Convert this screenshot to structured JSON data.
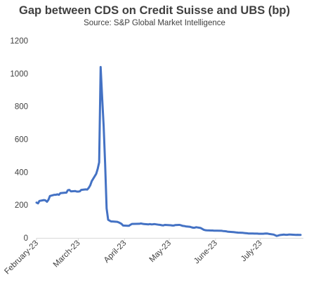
{
  "chart_data": {
    "type": "line",
    "title": "Gap between CDS on Credit Suisse and UBS (bp)",
    "subtitle": "Source: S&P Global Market Intelligence",
    "xlabel": "",
    "ylabel": "",
    "ylim": [
      0,
      1200
    ],
    "yticks": [
      0,
      200,
      400,
      600,
      800,
      1000,
      1200
    ],
    "xlim": [
      "2023-02-01",
      "2023-07-28"
    ],
    "xticks": [
      {
        "date": "2023-02-01",
        "label": "February-23"
      },
      {
        "date": "2023-03-01",
        "label": "March-23"
      },
      {
        "date": "2023-04-01",
        "label": "April-23"
      },
      {
        "date": "2023-05-01",
        "label": "May-23"
      },
      {
        "date": "2023-06-01",
        "label": "June-23"
      },
      {
        "date": "2023-07-01",
        "label": "July-23"
      }
    ],
    "grid": false,
    "legend": "none",
    "colors": {
      "line": "#4472c4",
      "text": "#404040",
      "axis": "#d9d9d9"
    },
    "series": [
      {
        "points": [
          [
            "2023-02-01",
            215
          ],
          [
            "2023-02-02",
            210
          ],
          [
            "2023-02-03",
            225
          ],
          [
            "2023-02-06",
            230
          ],
          [
            "2023-02-07",
            228
          ],
          [
            "2023-02-08",
            220
          ],
          [
            "2023-02-09",
            232
          ],
          [
            "2023-02-10",
            255
          ],
          [
            "2023-02-13",
            262
          ],
          [
            "2023-02-14",
            262
          ],
          [
            "2023-02-15",
            265
          ],
          [
            "2023-02-16",
            262
          ],
          [
            "2023-02-17",
            272
          ],
          [
            "2023-02-20",
            275
          ],
          [
            "2023-02-21",
            275
          ],
          [
            "2023-02-22",
            290
          ],
          [
            "2023-02-23",
            292
          ],
          [
            "2023-02-24",
            283
          ],
          [
            "2023-02-27",
            285
          ],
          [
            "2023-02-28",
            282
          ],
          [
            "2023-03-01",
            282
          ],
          [
            "2023-03-02",
            283
          ],
          [
            "2023-03-03",
            292
          ],
          [
            "2023-03-06",
            295
          ],
          [
            "2023-03-07",
            294
          ],
          [
            "2023-03-08",
            305
          ],
          [
            "2023-03-09",
            320
          ],
          [
            "2023-03-10",
            345
          ],
          [
            "2023-03-13",
            390
          ],
          [
            "2023-03-14",
            420
          ],
          [
            "2023-03-15",
            460
          ],
          [
            "2023-03-16",
            1040
          ],
          [
            "2023-03-17",
            850
          ],
          [
            "2023-03-18",
            680
          ],
          [
            "2023-03-19",
            450
          ],
          [
            "2023-03-20",
            180
          ],
          [
            "2023-03-21",
            110
          ],
          [
            "2023-03-22",
            105
          ],
          [
            "2023-03-23",
            100
          ],
          [
            "2023-03-24",
            100
          ],
          [
            "2023-03-27",
            98
          ],
          [
            "2023-03-28",
            95
          ],
          [
            "2023-03-29",
            90
          ],
          [
            "2023-03-30",
            85
          ],
          [
            "2023-03-31",
            75
          ],
          [
            "2023-04-03",
            74
          ],
          [
            "2023-04-04",
            74
          ],
          [
            "2023-04-05",
            80
          ],
          [
            "2023-04-06",
            85
          ],
          [
            "2023-04-11",
            86
          ],
          [
            "2023-04-12",
            88
          ],
          [
            "2023-04-13",
            86
          ],
          [
            "2023-04-14",
            84
          ],
          [
            "2023-04-17",
            82
          ],
          [
            "2023-04-18",
            84
          ],
          [
            "2023-04-19",
            82
          ],
          [
            "2023-04-20",
            83
          ],
          [
            "2023-04-21",
            84
          ],
          [
            "2023-04-24",
            80
          ],
          [
            "2023-04-25",
            79
          ],
          [
            "2023-04-26",
            77
          ],
          [
            "2023-04-27",
            76
          ],
          [
            "2023-04-28",
            79
          ],
          [
            "2023-05-02",
            77
          ],
          [
            "2023-05-03",
            75
          ],
          [
            "2023-05-04",
            75
          ],
          [
            "2023-05-05",
            78
          ],
          [
            "2023-05-08",
            79
          ],
          [
            "2023-05-09",
            76
          ],
          [
            "2023-05-10",
            73
          ],
          [
            "2023-05-11",
            72
          ],
          [
            "2023-05-12",
            70
          ],
          [
            "2023-05-15",
            67
          ],
          [
            "2023-05-16",
            64
          ],
          [
            "2023-05-17",
            62
          ],
          [
            "2023-05-18",
            62
          ],
          [
            "2023-05-19",
            65
          ],
          [
            "2023-05-22",
            60
          ],
          [
            "2023-05-23",
            55
          ],
          [
            "2023-05-24",
            50
          ],
          [
            "2023-05-25",
            47
          ],
          [
            "2023-05-26",
            46
          ],
          [
            "2023-05-29",
            45
          ],
          [
            "2023-05-30",
            45
          ],
          [
            "2023-05-31",
            44
          ],
          [
            "2023-06-01",
            44
          ],
          [
            "2023-06-02",
            44
          ],
          [
            "2023-06-05",
            43
          ],
          [
            "2023-06-06",
            42
          ],
          [
            "2023-06-07",
            41
          ],
          [
            "2023-06-08",
            40
          ],
          [
            "2023-06-09",
            38
          ],
          [
            "2023-06-12",
            36
          ],
          [
            "2023-06-13",
            35
          ],
          [
            "2023-06-14",
            34
          ],
          [
            "2023-06-15",
            33
          ],
          [
            "2023-06-16",
            32
          ],
          [
            "2023-06-19",
            31
          ],
          [
            "2023-06-20",
            30
          ],
          [
            "2023-06-21",
            29
          ],
          [
            "2023-06-22",
            28
          ],
          [
            "2023-06-23",
            27
          ],
          [
            "2023-06-26",
            27
          ],
          [
            "2023-06-27",
            26
          ],
          [
            "2023-06-28",
            26
          ],
          [
            "2023-06-29",
            26
          ],
          [
            "2023-06-30",
            25
          ],
          [
            "2023-07-03",
            25
          ],
          [
            "2023-07-04",
            26
          ],
          [
            "2023-07-05",
            27
          ],
          [
            "2023-07-06",
            26
          ],
          [
            "2023-07-07",
            24
          ],
          [
            "2023-07-10",
            20
          ],
          [
            "2023-07-11",
            16
          ],
          [
            "2023-07-12",
            12
          ],
          [
            "2023-07-13",
            14
          ],
          [
            "2023-07-14",
            17
          ],
          [
            "2023-07-17",
            20
          ],
          [
            "2023-07-18",
            19
          ],
          [
            "2023-07-19",
            19
          ],
          [
            "2023-07-20",
            20
          ],
          [
            "2023-07-21",
            20
          ],
          [
            "2023-07-24",
            19
          ],
          [
            "2023-07-25",
            18
          ],
          [
            "2023-07-26",
            19
          ],
          [
            "2023-07-27",
            18
          ],
          [
            "2023-07-28",
            18
          ]
        ]
      }
    ]
  }
}
